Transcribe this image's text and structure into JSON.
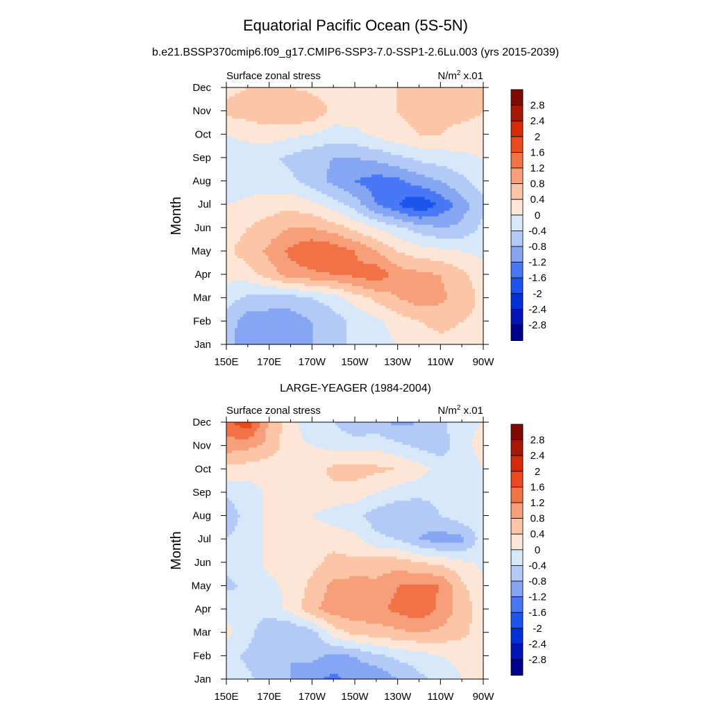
{
  "main_title": "Equatorial Pacific Ocean (5S-5N)",
  "subtitle": "b.e21.BSSP370cmip6.f09_g17.CMIP6-SSP3-7.0-SSP1-2.6Lu.003 (yrs 2015-2039)",
  "chart_data": [
    {
      "type": "heatmap",
      "panel": "model",
      "title": "",
      "left_label": "Surface zonal stress",
      "units_label": "N/m",
      "units_sup": "2",
      "units_suffix": " x.01",
      "ylabel": "Month",
      "x_tick_labels": [
        "150E",
        "170E",
        "170W",
        "150W",
        "130W",
        "110W",
        "90W"
      ],
      "y_tick_labels": [
        "Jan",
        "Feb",
        "Mar",
        "Apr",
        "May",
        "Jun",
        "Jul",
        "Aug",
        "Sep",
        "Oct",
        "Nov",
        "Dec"
      ],
      "x_longitudes": [
        150,
        160,
        170,
        180,
        190,
        200,
        210,
        220,
        230,
        240,
        250,
        260,
        270
      ],
      "z": [
        [
          -0.7,
          -1.0,
          -1.0,
          -0.9,
          -0.8,
          -0.6,
          -0.3,
          -0.2,
          0.0,
          0.2,
          0.3,
          0.3,
          0.2
        ],
        [
          -0.6,
          -1.0,
          -1.0,
          -1.0,
          -0.8,
          -0.6,
          -0.3,
          -0.1,
          0.2,
          0.4,
          0.5,
          0.4,
          0.3
        ],
        [
          -0.2,
          -0.5,
          -0.6,
          -0.6,
          -0.4,
          -0.2,
          0.2,
          0.5,
          0.8,
          1.0,
          0.9,
          0.6,
          0.3
        ],
        [
          0.1,
          0.2,
          0.6,
          1.0,
          1.1,
          1.2,
          1.3,
          1.5,
          1.0,
          0.9,
          0.8,
          0.5,
          0.2
        ],
        [
          0.3,
          0.6,
          0.9,
          1.3,
          1.6,
          1.5,
          1.2,
          0.8,
          0.4,
          0.2,
          0.1,
          0.0,
          -0.1
        ],
        [
          0.2,
          0.4,
          0.6,
          0.8,
          0.8,
          0.6,
          0.3,
          0.0,
          -0.3,
          -0.6,
          -0.8,
          -0.7,
          -0.3
        ],
        [
          0.0,
          0.1,
          0.2,
          0.3,
          0.1,
          -0.2,
          -0.6,
          -1.2,
          -1.6,
          -2.0,
          -1.5,
          -1.0,
          -0.5
        ],
        [
          -0.3,
          -0.2,
          -0.2,
          -0.3,
          -0.6,
          -0.9,
          -1.2,
          -1.4,
          -1.3,
          -1.0,
          -0.8,
          -0.5,
          -0.2
        ],
        [
          -0.2,
          -0.2,
          -0.3,
          -0.5,
          -0.7,
          -0.8,
          -0.8,
          -0.7,
          -0.5,
          -0.3,
          -0.2,
          -0.1,
          0.0
        ],
        [
          0.0,
          0.1,
          0.2,
          0.1,
          0.0,
          -0.2,
          -0.1,
          0.1,
          0.3,
          0.4,
          0.4,
          0.3,
          0.3
        ],
        [
          0.5,
          0.6,
          0.7,
          0.8,
          0.7,
          0.3,
          0.2,
          0.3,
          0.4,
          0.5,
          0.5,
          0.5,
          0.4
        ],
        [
          0.3,
          0.4,
          0.5,
          0.4,
          0.3,
          0.2,
          0.2,
          0.3,
          0.4,
          0.5,
          0.5,
          0.5,
          0.4
        ]
      ]
    },
    {
      "type": "heatmap",
      "panel": "observations",
      "title": "LARGE-YEAGER (1984-2004)",
      "left_label": "Surface zonal stress",
      "units_label": "N/m",
      "units_sup": "2",
      "units_suffix": " x.01",
      "ylabel": "Month",
      "x_tick_labels": [
        "150E",
        "170E",
        "170W",
        "150W",
        "130W",
        "110W",
        "90W"
      ],
      "y_tick_labels": [
        "Jan",
        "Feb",
        "Mar",
        "Apr",
        "May",
        "Jun",
        "Jul",
        "Aug",
        "Sep",
        "Oct",
        "Nov",
        "Dec"
      ],
      "x_longitudes": [
        150,
        160,
        170,
        180,
        190,
        200,
        210,
        220,
        230,
        240,
        250,
        260,
        270
      ],
      "z": [
        [
          -0.2,
          -0.3,
          -0.6,
          -0.8,
          -1.1,
          -1.3,
          -1.1,
          -1.2,
          -0.8,
          -0.5,
          -0.3,
          0.0,
          0.2
        ],
        [
          -0.2,
          -0.5,
          -0.8,
          -0.8,
          -0.7,
          -0.9,
          -0.8,
          -0.5,
          -0.3,
          -0.2,
          0.0,
          0.1,
          0.2
        ],
        [
          0.1,
          -0.2,
          -0.8,
          -0.8,
          -0.6,
          0.2,
          0.5,
          0.6,
          0.7,
          0.8,
          0.7,
          0.5,
          0.2
        ],
        [
          -0.1,
          -0.3,
          -0.2,
          0.1,
          0.7,
          1.0,
          1.1,
          1.1,
          1.3,
          1.5,
          1.1,
          0.6,
          0.2
        ],
        [
          -0.5,
          -0.3,
          -0.1,
          0.1,
          0.5,
          0.9,
          1.0,
          0.9,
          1.2,
          1.3,
          1.2,
          0.5,
          0.1
        ],
        [
          -0.3,
          -0.2,
          0.1,
          0.2,
          0.3,
          0.5,
          0.5,
          0.6,
          0.6,
          0.4,
          0.3,
          0.1,
          -0.1
        ],
        [
          -0.4,
          -0.2,
          0.1,
          0.2,
          0.3,
          0.3,
          0.1,
          -0.3,
          -0.4,
          -0.8,
          -1.0,
          -0.9,
          -0.2
        ],
        [
          -0.7,
          -0.2,
          0.1,
          0.2,
          0.0,
          -0.2,
          -0.3,
          -0.6,
          -0.8,
          -0.7,
          -0.4,
          -0.2,
          0.0
        ],
        [
          -0.3,
          -0.2,
          0.1,
          0.2,
          0.3,
          0.3,
          0.2,
          0.0,
          -0.2,
          -0.3,
          -0.3,
          -0.2,
          -0.1
        ],
        [
          0.3,
          0.2,
          0.1,
          0.1,
          0.2,
          0.5,
          0.6,
          0.5,
          0.4,
          0.2,
          -0.2,
          -0.3,
          0.0
        ],
        [
          1.0,
          0.9,
          0.7,
          0.1,
          0.0,
          -0.1,
          -0.2,
          -0.1,
          -0.3,
          -0.5,
          -0.6,
          -0.2,
          0.2
        ],
        [
          1.5,
          1.9,
          0.7,
          0.2,
          -0.3,
          -0.4,
          -0.7,
          -0.7,
          -0.9,
          -0.8,
          -0.5,
          -0.1,
          0.0
        ]
      ]
    }
  ],
  "colorbar": {
    "levels": [
      "2.8",
      "2.4",
      "2",
      "1.6",
      "1.2",
      "0.8",
      "0.4",
      "0",
      "-0.4",
      "-0.8",
      "-1.2",
      "-1.6",
      "-2",
      "-2.4",
      "-2.8"
    ],
    "thresholds": [
      -2.8,
      -2.4,
      -2.0,
      -1.6,
      -1.2,
      -0.8,
      -0.4,
      0,
      0.4,
      0.8,
      1.2,
      1.6,
      2.0,
      2.4,
      2.8
    ],
    "colors": [
      "#00008f",
      "#0016b8",
      "#0030d8",
      "#1c55ee",
      "#4878f5",
      "#86a6f4",
      "#b3caf6",
      "#d8e8fb",
      "#fde6d6",
      "#fbc5a6",
      "#f69f7a",
      "#f17246",
      "#ea4a1d",
      "#d42a0a",
      "#a71906",
      "#800a00"
    ]
  }
}
